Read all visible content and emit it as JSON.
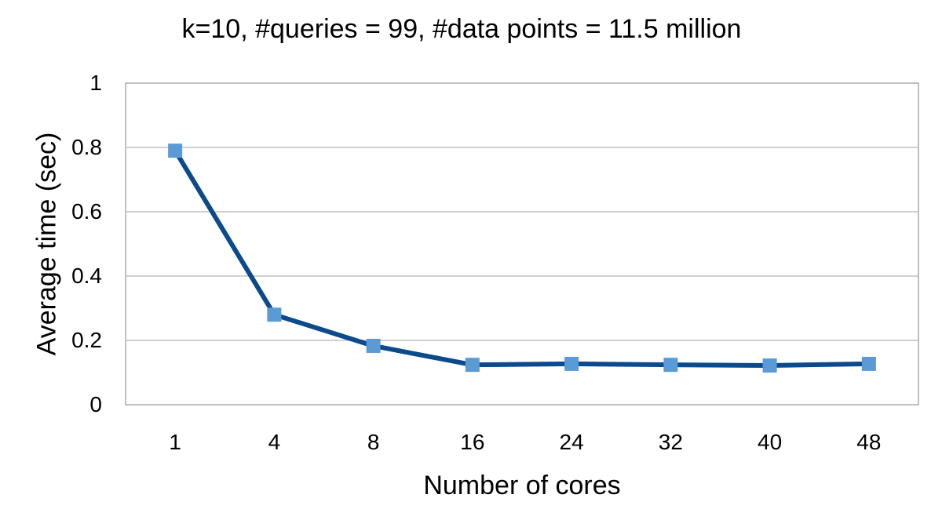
{
  "chart_data": {
    "type": "line",
    "title": "k=10, #queries = 99, #data points = 11.5 million",
    "xlabel": "Number of cores",
    "ylabel": "Average time (sec)",
    "categories": [
      "1",
      "4",
      "8",
      "16",
      "24",
      "32",
      "40",
      "48"
    ],
    "series": [
      {
        "name": "Average time",
        "values": [
          0.79,
          0.28,
          0.183,
          0.124,
          0.127,
          0.124,
          0.122,
          0.127
        ],
        "line_color": "#0B4A8C",
        "marker_color": "#5B9BD5",
        "marker": "square"
      }
    ],
    "ylim": [
      0,
      1
    ],
    "yticks": [
      "0",
      "0.2",
      "0.4",
      "0.6",
      "0.8",
      "1"
    ],
    "grid": true,
    "legend": "none"
  },
  "colors": {
    "line": "#0B4A8C",
    "marker": "#5B9BD5",
    "grid": "#D0D0D0",
    "axis": "#BFBFBF"
  }
}
